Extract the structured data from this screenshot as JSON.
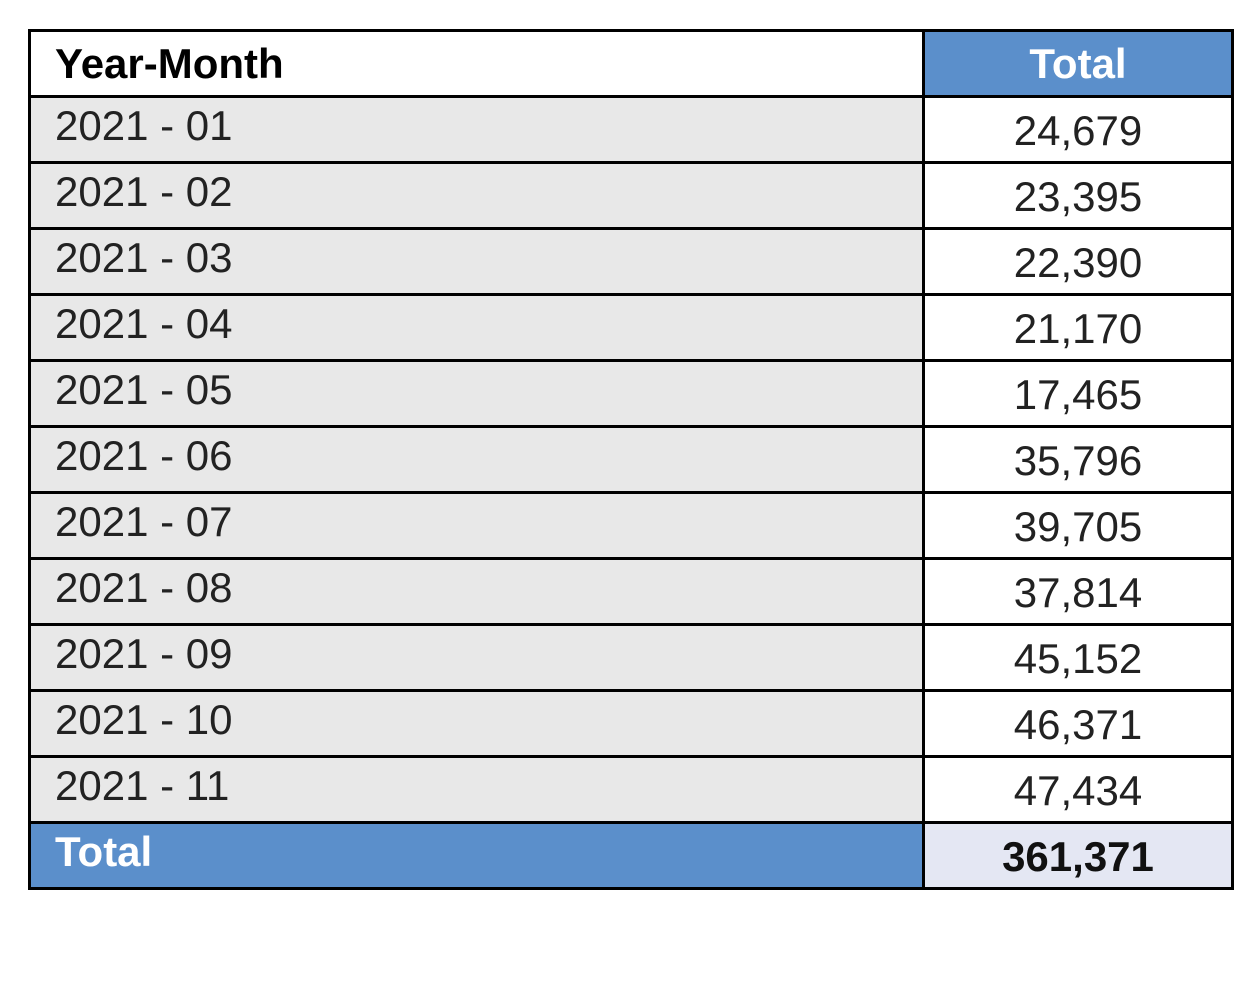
{
  "table": {
    "header": {
      "label": "Year-Month",
      "total": "Total"
    },
    "rows": [
      {
        "month": "2021 - 01",
        "value": "24,679"
      },
      {
        "month": "2021 - 02",
        "value": "23,395"
      },
      {
        "month": "2021 - 03",
        "value": "22,390"
      },
      {
        "month": "2021 - 04",
        "value": "21,170"
      },
      {
        "month": "2021 - 05",
        "value": "17,465"
      },
      {
        "month": "2021 - 06",
        "value": "35,796"
      },
      {
        "month": "2021 - 07",
        "value": "39,705"
      },
      {
        "month": "2021 - 08",
        "value": "37,814"
      },
      {
        "month": "2021 - 09",
        "value": "45,152"
      },
      {
        "month": "2021 - 10",
        "value": "46,371"
      },
      {
        "month": "2021 - 11",
        "value": "47,434"
      }
    ],
    "footer": {
      "label": "Total",
      "value": "361,371"
    }
  },
  "colors": {
    "accent_blue": "#5b8fcb",
    "row_gray": "#e8e8e8",
    "total_value_bg": "#e4e7f3",
    "border": "#000000"
  }
}
